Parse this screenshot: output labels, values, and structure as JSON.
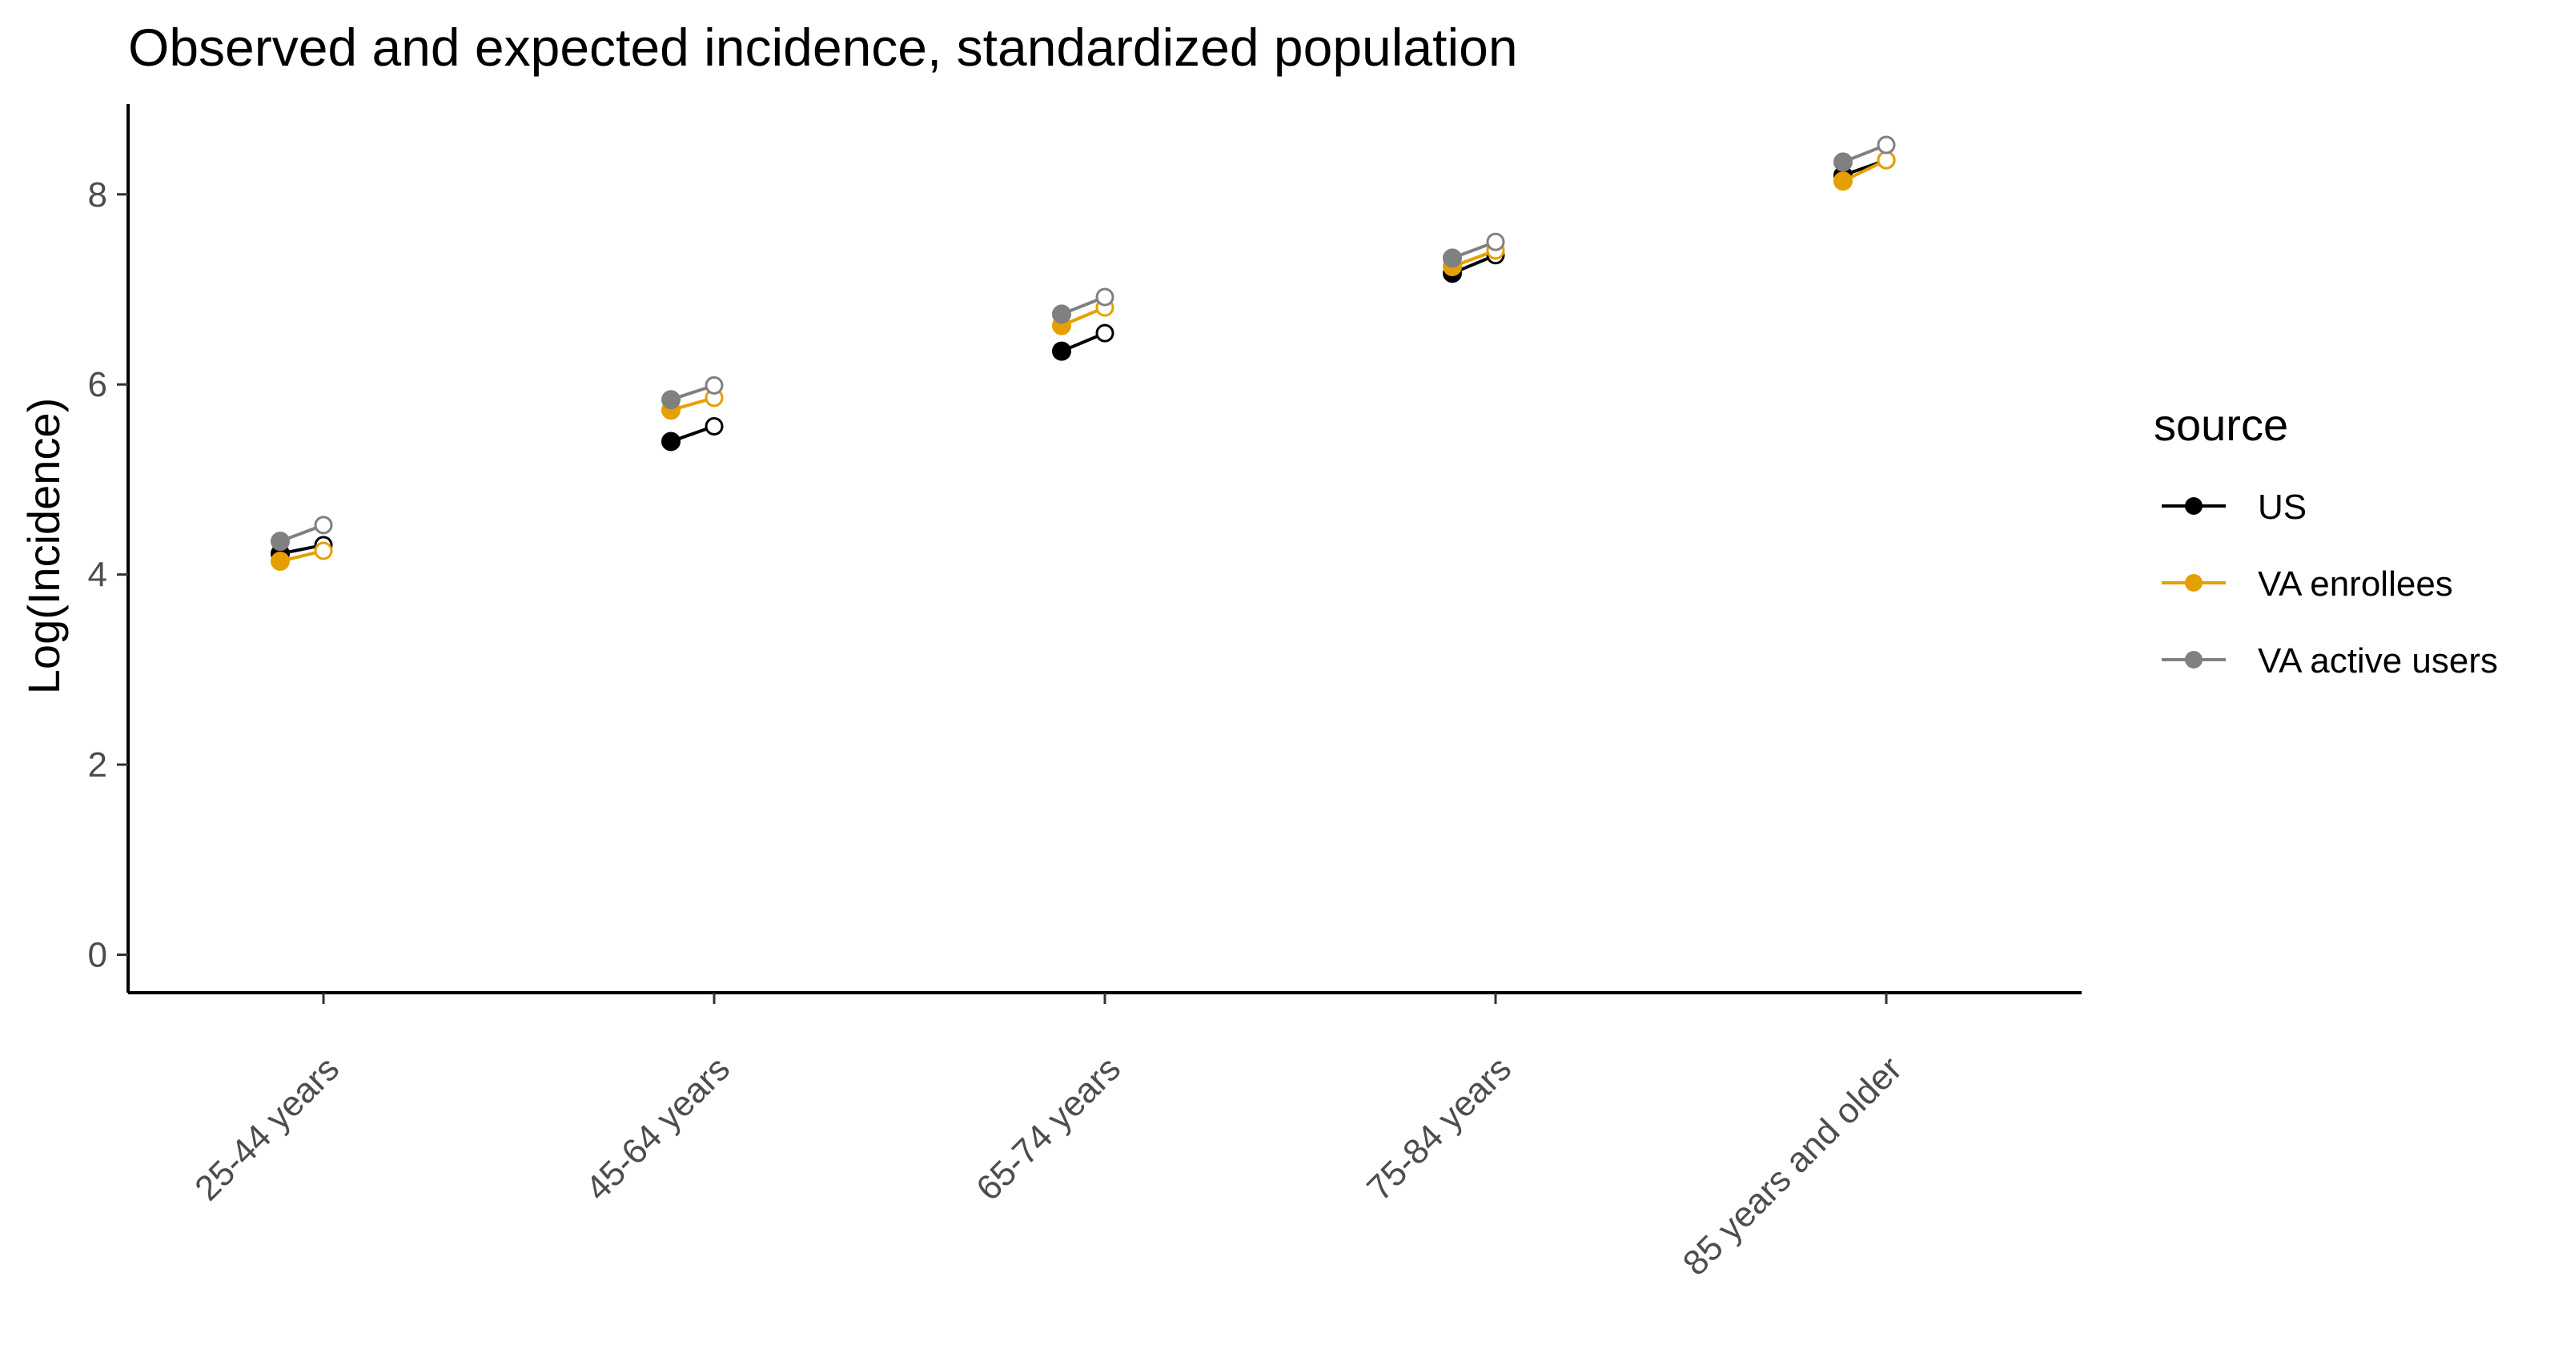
{
  "chart_data": {
    "type": "line",
    "title": "Observed and expected incidence, standardized population",
    "xlabel": "",
    "ylabel": "Log(Incidence)",
    "ylim": [
      -0.4,
      8.95
    ],
    "yticks": [
      0,
      2,
      4,
      6,
      8
    ],
    "categories": [
      "25-44 years",
      "45-64 years",
      "65-74 years",
      "75-84 years",
      "85 years and older"
    ],
    "grid": false,
    "legend": {
      "title": "source",
      "position": "right",
      "entries": [
        "US",
        "VA enrollees",
        "VA active users"
      ]
    },
    "point_styles": {
      "observed": "filled",
      "expected": "open"
    },
    "series": [
      {
        "name": "US",
        "color": "#000000",
        "observed": [
          4.22,
          5.4,
          6.35,
          7.17,
          8.2
        ],
        "expected": [
          4.31,
          5.56,
          6.54,
          7.36,
          8.36
        ]
      },
      {
        "name": "VA enrollees",
        "color": "#E69F00",
        "observed": [
          4.14,
          5.73,
          6.62,
          7.24,
          8.14
        ],
        "expected": [
          4.25,
          5.86,
          6.81,
          7.41,
          8.36
        ]
      },
      {
        "name": "VA active users",
        "color": "#808080",
        "observed": [
          4.35,
          5.84,
          6.74,
          7.33,
          8.34
        ],
        "expected": [
          4.52,
          5.99,
          6.92,
          7.5,
          8.52
        ]
      }
    ]
  }
}
